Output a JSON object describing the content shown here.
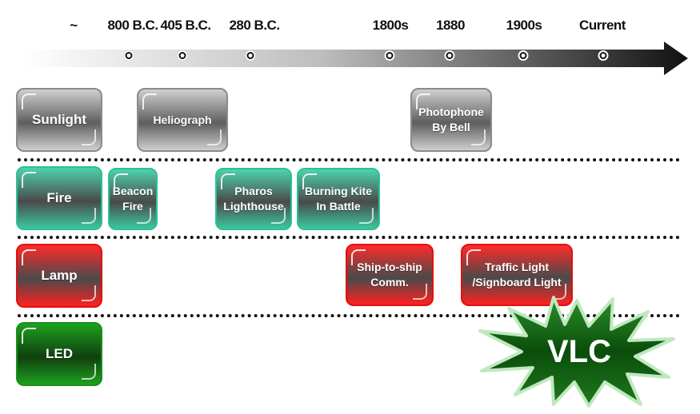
{
  "timeline": {
    "ticks": [
      {
        "label": "~"
      },
      {
        "label": "800 B.C."
      },
      {
        "label": "405 B.C."
      },
      {
        "label": "280 B.C."
      },
      {
        "label": "1800s"
      },
      {
        "label": "1880"
      },
      {
        "label": "1900s"
      },
      {
        "label": "Current"
      }
    ]
  },
  "rows": {
    "sunlight": {
      "category": "Sunlight",
      "items": [
        "Heliograph",
        "Photophone",
        "By Bell"
      ]
    },
    "fire": {
      "category": "Fire",
      "items": [
        "Beacon",
        "Fire",
        "Pharos",
        "Lighthouse",
        "Burning Kite",
        "In Battle"
      ]
    },
    "lamp": {
      "category": "Lamp",
      "items": [
        "Ship-to-ship",
        "Comm.",
        "Traffic Light",
        "/Signboard Light"
      ]
    },
    "led": {
      "category": "LED"
    }
  },
  "badge": {
    "label": "VLC"
  },
  "colors": {
    "gray": "#7a7a7a",
    "teal": "#2cc096",
    "red": "#ff2020",
    "green": "#1ea11e",
    "star_fill": "#0a4d0a"
  }
}
